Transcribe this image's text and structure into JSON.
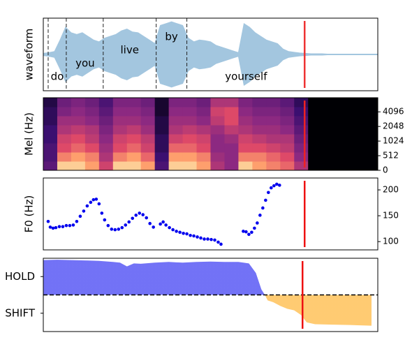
{
  "chart_data": [
    {
      "type": "waveform",
      "ylabel": "waveform",
      "xlim": [
        0,
        480
      ],
      "ylim": [
        -1,
        1
      ],
      "color": "#a3c6df",
      "values": [
        0.03,
        0.05,
        0.08,
        0.4,
        0.75,
        0.6,
        0.55,
        0.6,
        0.5,
        0.4,
        0.35,
        0.45,
        0.5,
        0.55,
        0.65,
        0.7,
        0.62,
        0.6,
        0.5,
        0.4,
        0.3,
        0.8,
        0.85,
        0.9,
        0.85,
        0.8,
        0.45,
        0.35,
        0.4,
        0.38,
        0.35,
        0.25,
        0.2,
        0.15,
        0.1,
        0.05,
        0.85,
        0.75,
        0.6,
        0.5,
        0.4,
        0.35,
        0.3,
        0.15,
        0.08,
        0.06,
        0.04,
        0.03,
        0.02,
        0.02,
        0.02,
        0.01,
        0.01,
        0.01,
        0.01,
        0.01,
        0.01,
        0.01,
        0.01,
        0.01,
        0.01
      ],
      "vlines": [
        7,
        33,
        86,
        162,
        206
      ],
      "annotations": [
        {
          "text": "do",
          "x": 20,
          "y": -0.62
        },
        {
          "text": "you",
          "x": 60,
          "y": -0.25
        },
        {
          "text": "live",
          "x": 124,
          "y": 0.12
        },
        {
          "text": "by",
          "x": 184,
          "y": 0.48
        },
        {
          "text": "yourself",
          "x": 291,
          "y": -0.62
        }
      ],
      "cursor": 375,
      "cursor_color": "#ee3333"
    },
    {
      "type": "heatmap",
      "ylabel": "Mel (Hz)",
      "xlim": [
        0,
        480
      ],
      "ylim": [
        0,
        8000
      ],
      "yscale": "symlog",
      "linthresh": 512,
      "yticks": [
        0,
        512,
        1024,
        2048,
        4096
      ],
      "colormap": "magma",
      "z": [
        [
          0.35,
          0.95,
          0.95,
          0.9,
          0.7,
          0.95,
          0.95,
          0.9,
          0.3,
          0.95,
          0.95,
          0.9,
          0.6,
          0.5,
          0.95,
          0.9,
          0.85,
          0.8,
          0.6,
          0,
          0,
          0,
          0,
          0
        ],
        [
          0.3,
          0.85,
          0.9,
          0.85,
          0.6,
          0.85,
          0.9,
          0.8,
          0.25,
          0.9,
          0.9,
          0.85,
          0.55,
          0.5,
          0.85,
          0.85,
          0.8,
          0.75,
          0.5,
          0,
          0,
          0,
          0,
          0
        ],
        [
          0.3,
          0.75,
          0.8,
          0.75,
          0.55,
          0.75,
          0.8,
          0.7,
          0.2,
          0.8,
          0.8,
          0.75,
          0.5,
          0.5,
          0.75,
          0.75,
          0.7,
          0.65,
          0.45,
          0,
          0,
          0,
          0,
          0
        ],
        [
          0.25,
          0.7,
          0.75,
          0.65,
          0.5,
          0.7,
          0.75,
          0.65,
          0.2,
          0.7,
          0.75,
          0.7,
          0.5,
          0.55,
          0.7,
          0.65,
          0.6,
          0.6,
          0.4,
          0,
          0,
          0,
          0,
          0
        ],
        [
          0.25,
          0.6,
          0.65,
          0.6,
          0.45,
          0.6,
          0.65,
          0.55,
          0.15,
          0.6,
          0.65,
          0.6,
          0.55,
          0.65,
          0.6,
          0.55,
          0.55,
          0.5,
          0.35,
          0,
          0,
          0,
          0,
          0
        ],
        [
          0.2,
          0.55,
          0.55,
          0.5,
          0.4,
          0.55,
          0.55,
          0.5,
          0.15,
          0.55,
          0.55,
          0.5,
          0.65,
          0.75,
          0.55,
          0.5,
          0.5,
          0.45,
          0.3,
          0,
          0,
          0,
          0,
          0
        ],
        [
          0.2,
          0.45,
          0.5,
          0.45,
          0.35,
          0.5,
          0.5,
          0.45,
          0.1,
          0.5,
          0.5,
          0.45,
          0.7,
          0.75,
          0.5,
          0.45,
          0.45,
          0.4,
          0.25,
          0,
          0,
          0,
          0,
          0
        ],
        [
          0.15,
          0.4,
          0.45,
          0.4,
          0.3,
          0.45,
          0.45,
          0.4,
          0.1,
          0.45,
          0.45,
          0.4,
          0.6,
          0.6,
          0.45,
          0.4,
          0.4,
          0.35,
          0.2,
          0,
          0,
          0,
          0,
          0
        ]
      ],
      "cursor": 375,
      "cursor_color": "#ee2222"
    },
    {
      "type": "scatter",
      "ylabel": "F0 (Hz)",
      "xlim": [
        0,
        480
      ],
      "ylim": [
        84,
        223
      ],
      "yticks": [
        100,
        150,
        200
      ],
      "color": "#0000ee",
      "x": [
        7,
        10,
        14,
        18,
        23,
        28,
        33,
        38,
        43,
        48,
        53,
        58,
        63,
        68,
        72,
        76,
        80,
        84,
        88,
        93,
        98,
        103,
        108,
        113,
        118,
        123,
        128,
        133,
        138,
        143,
        148,
        153,
        158,
        168,
        172,
        176,
        181,
        186,
        191,
        196,
        201,
        206,
        211,
        216,
        221,
        226,
        231,
        236,
        241,
        246,
        251,
        255,
        287,
        291,
        295,
        299,
        303,
        307,
        311,
        315,
        319,
        323,
        327,
        331,
        335,
        339
      ],
      "y": [
        139,
        128,
        126,
        127,
        129,
        129,
        131,
        131,
        132,
        139,
        149,
        159,
        169,
        176,
        181,
        182,
        173,
        155,
        142,
        131,
        124,
        123,
        124,
        127,
        132,
        138,
        145,
        151,
        155,
        152,
        146,
        135,
        128,
        134,
        138,
        132,
        127,
        123,
        120,
        118,
        116,
        115,
        112,
        111,
        109,
        107,
        105,
        105,
        104,
        103,
        99,
        95,
        120,
        119,
        114,
        118,
        126,
        136,
        151,
        165,
        180,
        195,
        204,
        208,
        211,
        209
      ],
      "cursor": 375,
      "cursor_color": "#ee1111"
    },
    {
      "type": "area",
      "xlim": [
        0,
        480
      ],
      "ylim": [
        -1,
        1
      ],
      "yticks": [
        {
          "value": 0.5,
          "label": "HOLD"
        },
        {
          "value": -0.5,
          "label": "SHIFT"
        }
      ],
      "hline": 0,
      "pos_color": "#6b6bf5",
      "neg_color": "#ffc86b",
      "x": [
        0,
        20,
        40,
        60,
        80,
        100,
        110,
        120,
        130,
        140,
        160,
        180,
        200,
        220,
        240,
        260,
        280,
        295,
        305,
        313,
        318,
        322,
        330,
        340,
        350,
        360,
        370,
        378,
        390,
        410,
        440,
        471
      ],
      "values": [
        0.95,
        0.96,
        0.95,
        0.94,
        0.93,
        0.9,
        0.88,
        0.78,
        0.86,
        0.85,
        0.88,
        0.9,
        0.88,
        0.9,
        0.91,
        0.9,
        0.9,
        0.86,
        0.6,
        0.15,
        0,
        -0.15,
        -0.2,
        -0.3,
        -0.38,
        -0.42,
        -0.55,
        -0.75,
        -0.8,
        -0.81,
        -0.82,
        -0.84
      ],
      "cursor": 372,
      "cursor_color": "#ee1111"
    }
  ]
}
